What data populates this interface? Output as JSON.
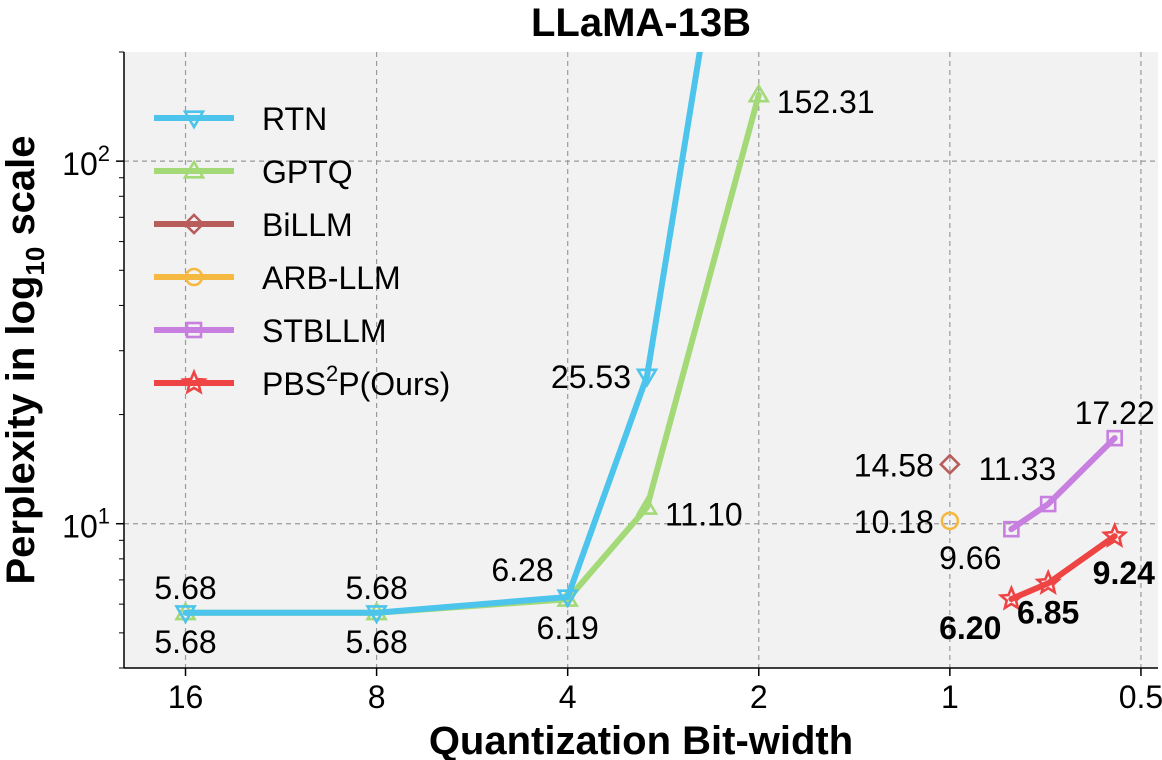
{
  "chart_data": {
    "type": "line",
    "title": "LLaMA-13B",
    "xlabel": "Quantization Bit-width",
    "ylabel_prefix": "Perplexity in log",
    "ylabel_subscript": "10",
    "ylabel_suffix": " scale",
    "x_scale": "log2 (reversed)",
    "y_scale": "log10",
    "xlim": [
      20,
      0.47
    ],
    "ylim": [
      4.0,
      200
    ],
    "grid": true,
    "legend_position": "upper-left",
    "x_ticks": [
      {
        "value": 16,
        "label": "16"
      },
      {
        "value": 8,
        "label": "8"
      },
      {
        "value": 4,
        "label": "4"
      },
      {
        "value": 2,
        "label": "2"
      },
      {
        "value": 1,
        "label": "1"
      },
      {
        "value": 0.5,
        "label": "0.5"
      }
    ],
    "y_ticks": [
      {
        "value": 10,
        "base": "10",
        "exp": "1"
      },
      {
        "value": 100,
        "base": "10",
        "exp": "2"
      }
    ],
    "series": [
      {
        "name": "RTN",
        "color": "#4cc4ec",
        "marker": "triangle-down",
        "x": [
          16,
          8,
          4,
          3,
          2
        ],
        "y": [
          5.68,
          5.68,
          6.28,
          25.53,
          2000
        ]
      },
      {
        "name": "GPTQ",
        "color": "#a3d977",
        "marker": "triangle-up",
        "x": [
          16,
          8,
          4,
          3,
          2
        ],
        "y": [
          5.68,
          5.68,
          6.19,
          11.1,
          152.31
        ]
      },
      {
        "name": "BiLLM",
        "color": "#b85c5c",
        "marker": "diamond",
        "x": [
          1
        ],
        "y": [
          14.58
        ]
      },
      {
        "name": "ARB-LLM",
        "color": "#f5b942",
        "marker": "circle",
        "x": [
          1
        ],
        "y": [
          10.18
        ]
      },
      {
        "name": "STBLLM",
        "color": "#c77fe0",
        "marker": "square",
        "x": [
          0.8,
          0.7,
          0.55
        ],
        "y": [
          9.66,
          11.33,
          17.22
        ]
      },
      {
        "name_base": "PBS",
        "name_sup": "2",
        "name_tail": "P(Ours)",
        "color": "#ef4444",
        "marker": "star",
        "x": [
          0.8,
          0.7,
          0.55
        ],
        "y": [
          6.2,
          6.85,
          9.24
        ]
      }
    ],
    "annotations": [
      {
        "text": "5.68",
        "x": 16,
        "y": 5.68,
        "pos": "above",
        "color": "#000000"
      },
      {
        "text": "5.68",
        "x": 16,
        "y": 5.68,
        "pos": "below",
        "color": "#000000"
      },
      {
        "text": "5.68",
        "x": 8,
        "y": 5.68,
        "pos": "above",
        "color": "#000000"
      },
      {
        "text": "5.68",
        "x": 8,
        "y": 5.68,
        "pos": "below",
        "color": "#000000"
      },
      {
        "text": "6.28",
        "x": 4,
        "y": 6.28,
        "pos": "above-left",
        "color": "#000000"
      },
      {
        "text": "6.19",
        "x": 4,
        "y": 6.19,
        "pos": "below",
        "color": "#000000"
      },
      {
        "text": "25.53",
        "x": 3,
        "y": 25.53,
        "pos": "left",
        "color": "#000000"
      },
      {
        "text": "11.10",
        "x": 3,
        "y": 11.1,
        "pos": "right",
        "color": "#000000"
      },
      {
        "text": "152.31",
        "x": 2,
        "y": 152.31,
        "pos": "right",
        "color": "#000000"
      },
      {
        "text": "14.58",
        "x": 1,
        "y": 14.58,
        "pos": "left",
        "color": "#000000"
      },
      {
        "text": "10.18",
        "x": 1,
        "y": 10.18,
        "pos": "left",
        "color": "#000000"
      },
      {
        "text": "11.33",
        "x": 0.7,
        "y": 11.33,
        "pos": "upper-left",
        "color": "#000000"
      },
      {
        "text": "9.66",
        "x": 0.8,
        "y": 9.66,
        "pos": "below-left",
        "color": "#000000"
      },
      {
        "text": "17.22",
        "x": 0.55,
        "y": 17.22,
        "pos": "above",
        "color": "#000000"
      },
      {
        "text": "6.20",
        "x": 0.8,
        "y": 6.2,
        "pos": "below-left",
        "color": "#ee1111"
      },
      {
        "text": "6.85",
        "x": 0.7,
        "y": 6.85,
        "pos": "below",
        "color": "#ee1111"
      },
      {
        "text": "9.24",
        "x": 0.55,
        "y": 9.24,
        "pos": "below-right",
        "color": "#ee1111"
      }
    ]
  }
}
